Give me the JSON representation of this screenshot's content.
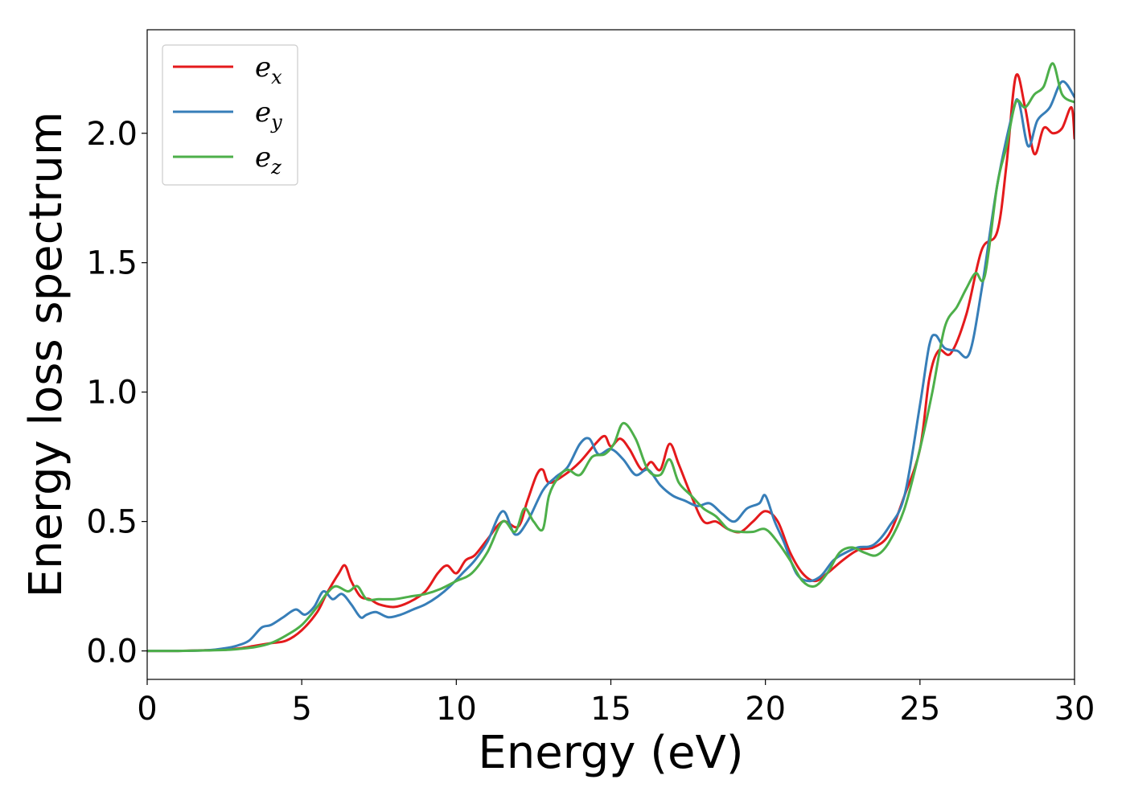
{
  "chart_data": {
    "type": "line",
    "title": "",
    "xlabel": "Energy (eV)",
    "ylabel": "Energy loss spectrum",
    "xlim": [
      0,
      30
    ],
    "ylim": [
      -0.11,
      2.4
    ],
    "xticks": [
      0,
      5,
      10,
      15,
      20,
      25,
      30
    ],
    "yticks": [
      0.0,
      0.5,
      1.0,
      1.5,
      2.0
    ],
    "xtick_labels": [
      "0",
      "5",
      "10",
      "15",
      "20",
      "25",
      "30"
    ],
    "ytick_labels": [
      "0.0",
      "0.5",
      "1.0",
      "1.5",
      "2.0"
    ],
    "grid": false,
    "legend_position": "top-left",
    "series": [
      {
        "name": "e_x",
        "label_base": "e",
        "label_sub": "x",
        "color": "#e41a1c",
        "x": [
          0,
          1,
          2,
          2.6,
          3,
          3.5,
          4,
          4.5,
          5,
          5.5,
          5.8,
          6.2,
          6.4,
          6.6,
          6.9,
          7.2,
          7.5,
          8,
          8.5,
          9,
          9.4,
          9.7,
          10,
          10.3,
          10.6,
          11,
          11.5,
          12,
          12.3,
          12.6,
          12.8,
          13,
          13.5,
          14,
          14.5,
          14.8,
          15,
          15.3,
          15.6,
          16,
          16.3,
          16.6,
          16.9,
          17.2,
          17.6,
          18,
          18.4,
          18.8,
          19.2,
          19.6,
          20,
          20.4,
          20.8,
          21.2,
          21.6,
          22,
          22.5,
          23,
          23.5,
          24,
          24.5,
          25,
          25.3,
          25.6,
          26,
          26.5,
          27,
          27.5,
          27.8,
          28.1,
          28.4,
          28.7,
          29,
          29.3,
          29.6,
          29.9,
          30
        ],
        "y": [
          0,
          0,
          0.003,
          0.005,
          0.01,
          0.02,
          0.03,
          0.04,
          0.08,
          0.15,
          0.22,
          0.3,
          0.33,
          0.27,
          0.21,
          0.2,
          0.18,
          0.17,
          0.19,
          0.23,
          0.3,
          0.33,
          0.3,
          0.35,
          0.37,
          0.43,
          0.5,
          0.48,
          0.58,
          0.68,
          0.7,
          0.65,
          0.68,
          0.73,
          0.8,
          0.83,
          0.79,
          0.82,
          0.78,
          0.7,
          0.73,
          0.7,
          0.8,
          0.72,
          0.6,
          0.5,
          0.5,
          0.47,
          0.46,
          0.5,
          0.54,
          0.5,
          0.38,
          0.3,
          0.27,
          0.3,
          0.35,
          0.39,
          0.4,
          0.45,
          0.6,
          0.78,
          1.05,
          1.16,
          1.15,
          1.3,
          1.55,
          1.62,
          1.88,
          2.22,
          2.1,
          1.92,
          2.02,
          2.0,
          2.02,
          2.1,
          1.98
        ]
      },
      {
        "name": "e_y",
        "label_base": "e",
        "label_sub": "y",
        "color": "#377eb8",
        "x": [
          0,
          1,
          2,
          2.5,
          2.9,
          3.3,
          3.7,
          4,
          4.4,
          4.8,
          5.1,
          5.4,
          5.7,
          6,
          6.3,
          6.6,
          6.9,
          7.1,
          7.4,
          7.8,
          8.2,
          8.6,
          9,
          9.4,
          9.8,
          10.2,
          10.6,
          11,
          11.5,
          11.9,
          12.3,
          12.8,
          13.2,
          13.6,
          14,
          14.3,
          14.6,
          15,
          15.4,
          15.8,
          16.2,
          16.6,
          17,
          17.4,
          17.8,
          18.2,
          18.6,
          19,
          19.4,
          19.8,
          20,
          20.3,
          20.6,
          21,
          21.4,
          21.8,
          22.2,
          22.6,
          23,
          23.5,
          24,
          24.5,
          25,
          25.3,
          25.5,
          25.8,
          26.2,
          26.6,
          27,
          27.5,
          28,
          28.2,
          28.5,
          28.8,
          29.2,
          29.6,
          30
        ],
        "y": [
          0,
          0,
          0.003,
          0.01,
          0.02,
          0.04,
          0.09,
          0.1,
          0.13,
          0.16,
          0.14,
          0.17,
          0.23,
          0.2,
          0.22,
          0.18,
          0.13,
          0.14,
          0.15,
          0.13,
          0.14,
          0.16,
          0.18,
          0.21,
          0.25,
          0.3,
          0.35,
          0.42,
          0.54,
          0.45,
          0.5,
          0.62,
          0.67,
          0.71,
          0.8,
          0.82,
          0.76,
          0.78,
          0.74,
          0.68,
          0.7,
          0.64,
          0.6,
          0.58,
          0.56,
          0.57,
          0.53,
          0.5,
          0.55,
          0.57,
          0.6,
          0.5,
          0.42,
          0.3,
          0.27,
          0.29,
          0.35,
          0.38,
          0.4,
          0.41,
          0.48,
          0.6,
          0.95,
          1.18,
          1.22,
          1.17,
          1.16,
          1.15,
          1.4,
          1.8,
          2.08,
          2.12,
          1.95,
          2.05,
          2.1,
          2.2,
          2.14
        ]
      },
      {
        "name": "e_z",
        "label_base": "e",
        "label_sub": "z",
        "color": "#4daf4a",
        "x": [
          0,
          1,
          2,
          2.6,
          3,
          3.5,
          4,
          4.5,
          5,
          5.5,
          5.8,
          6.1,
          6.5,
          6.8,
          7.1,
          7.5,
          8,
          8.5,
          9,
          9.5,
          10,
          10.5,
          11,
          11.5,
          11.9,
          12.2,
          12.5,
          12.8,
          13,
          13.3,
          13.6,
          14,
          14.4,
          14.8,
          15.1,
          15.4,
          15.8,
          16.2,
          16.6,
          16.9,
          17.2,
          17.6,
          18,
          18.4,
          18.8,
          19.2,
          19.6,
          20,
          20.4,
          20.8,
          21.2,
          21.6,
          22,
          22.4,
          22.8,
          23.2,
          23.6,
          24,
          24.5,
          25,
          25.4,
          25.8,
          26.2,
          26.5,
          26.8,
          27.1,
          27.5,
          27.8,
          28.1,
          28.4,
          28.7,
          29,
          29.3,
          29.6,
          30
        ],
        "y": [
          0,
          0,
          0.002,
          0.004,
          0.008,
          0.015,
          0.03,
          0.06,
          0.1,
          0.17,
          0.22,
          0.25,
          0.23,
          0.25,
          0.2,
          0.2,
          0.2,
          0.21,
          0.22,
          0.24,
          0.27,
          0.3,
          0.38,
          0.5,
          0.46,
          0.55,
          0.5,
          0.47,
          0.6,
          0.67,
          0.7,
          0.68,
          0.75,
          0.76,
          0.8,
          0.88,
          0.82,
          0.7,
          0.68,
          0.74,
          0.65,
          0.6,
          0.55,
          0.52,
          0.47,
          0.46,
          0.46,
          0.47,
          0.42,
          0.35,
          0.27,
          0.25,
          0.3,
          0.38,
          0.4,
          0.38,
          0.37,
          0.42,
          0.55,
          0.78,
          1.0,
          1.25,
          1.33,
          1.4,
          1.46,
          1.45,
          1.8,
          1.95,
          2.12,
          2.1,
          2.15,
          2.18,
          2.27,
          2.15,
          2.12
        ]
      }
    ]
  }
}
